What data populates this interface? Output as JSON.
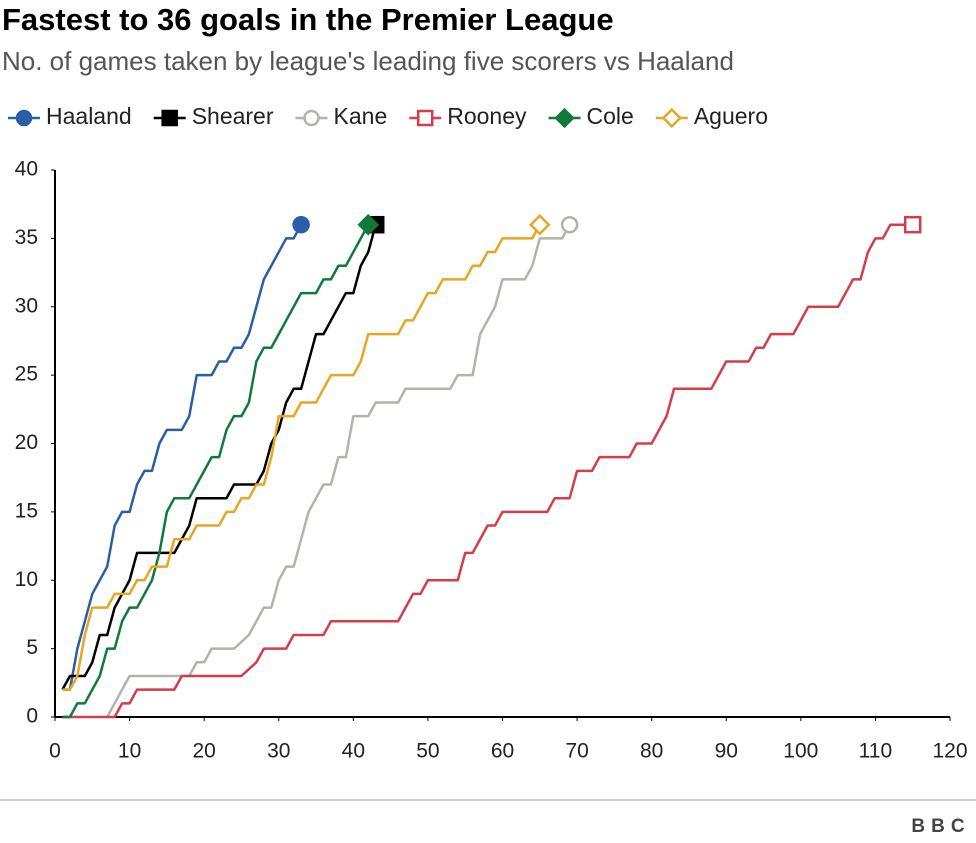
{
  "chart_data": {
    "type": "line",
    "title": "Fastest to 36 goals in the Premier League",
    "subtitle": "No. of games taken by league's leading five scorers vs Haaland",
    "source": "BBC",
    "xlim": [
      0,
      120
    ],
    "xticks": [
      0,
      10,
      20,
      30,
      40,
      50,
      60,
      70,
      80,
      90,
      100,
      110,
      120
    ],
    "ylim": [
      0,
      40
    ],
    "yticks": [
      0,
      5,
      10,
      15,
      20,
      25,
      30,
      35,
      40
    ],
    "series": [
      {
        "name": "Haaland",
        "color": "#2b5ea7",
        "marker": "circle",
        "filled": true,
        "x": [
          1,
          2,
          3,
          4,
          5,
          6,
          7,
          8,
          9,
          10,
          11,
          12,
          13,
          14,
          15,
          16,
          17,
          18,
          19,
          20,
          21,
          22,
          23,
          24,
          25,
          26,
          27,
          28,
          29,
          30,
          31,
          32,
          33
        ],
        "values": [
          2,
          2,
          5,
          7,
          9,
          10,
          11,
          14,
          15,
          15,
          17,
          18,
          18,
          20,
          21,
          21,
          21,
          22,
          25,
          25,
          25,
          26,
          26,
          27,
          27,
          28,
          30,
          32,
          33,
          34,
          35,
          35,
          36
        ]
      },
      {
        "name": "Shearer",
        "color": "#000000",
        "marker": "square",
        "filled": true,
        "x": [
          1,
          2,
          3,
          4,
          5,
          6,
          7,
          8,
          9,
          10,
          11,
          12,
          13,
          14,
          15,
          16,
          17,
          18,
          19,
          20,
          21,
          22,
          23,
          24,
          25,
          26,
          27,
          28,
          29,
          30,
          31,
          32,
          33,
          34,
          35,
          36,
          37,
          38,
          39,
          40,
          41,
          42,
          43
        ],
        "values": [
          2,
          3,
          3,
          3,
          4,
          6,
          6,
          8,
          9,
          10,
          12,
          12,
          12,
          12,
          12,
          12,
          13,
          14,
          16,
          16,
          16,
          16,
          16,
          17,
          17,
          17,
          17,
          18,
          20,
          21,
          23,
          24,
          24,
          26,
          28,
          28,
          29,
          30,
          31,
          31,
          33,
          34,
          36
        ]
      },
      {
        "name": "Kane",
        "color": "#b3b3ab",
        "marker": "circle",
        "filled": false,
        "x": [
          7,
          8,
          9,
          10,
          15,
          18,
          19,
          20,
          21,
          24,
          26,
          27,
          28,
          29,
          30,
          31,
          32,
          33,
          34,
          35,
          36,
          37,
          38,
          39,
          40,
          41,
          42,
          43,
          46,
          47,
          53,
          54,
          56,
          57,
          58,
          59,
          60,
          63,
          64,
          65,
          68,
          69
        ],
        "values": [
          0,
          1,
          2,
          3,
          3,
          3,
          4,
          4,
          5,
          5,
          6,
          7,
          8,
          8,
          10,
          11,
          11,
          13,
          15,
          16,
          17,
          17,
          19,
          19,
          22,
          22,
          22,
          23,
          23,
          24,
          24,
          25,
          25,
          28,
          29,
          30,
          32,
          32,
          33,
          35,
          35,
          36
        ]
      },
      {
        "name": "Rooney",
        "color": "#d43d4a",
        "marker": "square",
        "filled": false,
        "x": [
          1,
          8,
          9,
          10,
          11,
          16,
          17,
          25,
          27,
          28,
          31,
          32,
          36,
          37,
          46,
          47,
          48,
          49,
          50,
          54,
          55,
          56,
          57,
          58,
          59,
          60,
          66,
          67,
          69,
          70,
          72,
          73,
          77,
          78,
          80,
          82,
          83,
          88,
          89,
          90,
          93,
          94,
          95,
          96,
          99,
          100,
          101,
          105,
          106,
          107,
          108,
          109,
          110,
          111,
          112,
          115
        ],
        "values": [
          0,
          0,
          1,
          1,
          2,
          2,
          3,
          3,
          4,
          5,
          5,
          6,
          6,
          7,
          7,
          8,
          9,
          9,
          10,
          10,
          12,
          12,
          13,
          14,
          14,
          15,
          15,
          16,
          16,
          18,
          18,
          19,
          19,
          20,
          20,
          22,
          24,
          24,
          25,
          26,
          26,
          27,
          27,
          28,
          28,
          29,
          30,
          30,
          31,
          32,
          32,
          34,
          35,
          35,
          36,
          36
        ]
      },
      {
        "name": "Cole",
        "color": "#117a3b",
        "marker": "diamond",
        "filled": true,
        "x": [
          1,
          2,
          3,
          4,
          5,
          6,
          7,
          8,
          9,
          10,
          11,
          12,
          13,
          14,
          15,
          16,
          18,
          19,
          20,
          21,
          22,
          23,
          24,
          25,
          26,
          27,
          28,
          29,
          30,
          31,
          32,
          33,
          35,
          36,
          37,
          38,
          39,
          40,
          41,
          42
        ],
        "values": [
          0,
          0,
          1,
          1,
          2,
          3,
          5,
          5,
          7,
          8,
          8,
          9,
          10,
          12,
          15,
          16,
          16,
          17,
          18,
          19,
          19,
          21,
          22,
          22,
          23,
          26,
          27,
          27,
          28,
          29,
          30,
          31,
          31,
          32,
          32,
          33,
          33,
          34,
          35,
          36
        ]
      },
      {
        "name": "Aguero",
        "color": "#e8a623",
        "marker": "diamond",
        "filled": false,
        "x": [
          1,
          2,
          3,
          4,
          5,
          7,
          8,
          10,
          11,
          12,
          13,
          15,
          16,
          18,
          19,
          22,
          23,
          24,
          25,
          26,
          27,
          28,
          29,
          30,
          32,
          33,
          35,
          36,
          37,
          40,
          41,
          42,
          46,
          47,
          48,
          49,
          50,
          51,
          52,
          55,
          56,
          57,
          58,
          59,
          60,
          64,
          65
        ],
        "values": [
          2,
          2,
          3,
          6,
          8,
          8,
          9,
          9,
          10,
          10,
          11,
          11,
          13,
          13,
          14,
          14,
          15,
          15,
          16,
          16,
          17,
          17,
          19,
          22,
          22,
          23,
          23,
          24,
          25,
          25,
          26,
          28,
          28,
          29,
          29,
          30,
          31,
          31,
          32,
          32,
          33,
          33,
          34,
          34,
          35,
          35,
          36
        ]
      }
    ]
  }
}
